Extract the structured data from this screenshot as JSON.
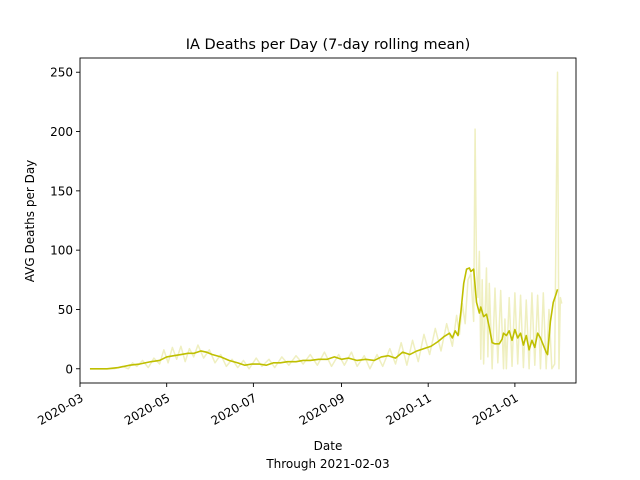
{
  "chart_data": {
    "type": "line",
    "title": "IA Deaths per Day (7-day rolling mean)",
    "xlabel": "Date",
    "xlabel_sub": "Through 2021-02-03",
    "ylabel": "AVG Deaths per Day",
    "xlim": [
      "2020-03-01",
      "2021-02-13"
    ],
    "ylim": [
      -12,
      262
    ],
    "yticks": [
      0,
      50,
      100,
      150,
      200,
      250
    ],
    "xticks": [
      "2020-03",
      "2020-05",
      "2020-07",
      "2020-09",
      "2020-11",
      "2021-01"
    ],
    "xtick_dates": [
      "2020-03-01",
      "2020-05-01",
      "2020-07-01",
      "2020-09-01",
      "2020-11-01",
      "2021-01-01"
    ],
    "grid": false,
    "series": [
      {
        "role": "daily",
        "color": "#efefc0",
        "points": [
          [
            "2020-03-08",
            0
          ],
          [
            "2020-03-25",
            0
          ],
          [
            "2020-03-31",
            2
          ],
          [
            "2020-04-04",
            0
          ],
          [
            "2020-04-07",
            5
          ],
          [
            "2020-04-10",
            2
          ],
          [
            "2020-04-14",
            7
          ],
          [
            "2020-04-18",
            1
          ],
          [
            "2020-04-22",
            9
          ],
          [
            "2020-04-26",
            4
          ],
          [
            "2020-04-29",
            16
          ],
          [
            "2020-05-02",
            5
          ],
          [
            "2020-05-05",
            18
          ],
          [
            "2020-05-08",
            8
          ],
          [
            "2020-05-11",
            19
          ],
          [
            "2020-05-14",
            6
          ],
          [
            "2020-05-17",
            17
          ],
          [
            "2020-05-20",
            10
          ],
          [
            "2020-05-23",
            20
          ],
          [
            "2020-05-27",
            9
          ],
          [
            "2020-05-31",
            16
          ],
          [
            "2020-06-04",
            5
          ],
          [
            "2020-06-08",
            12
          ],
          [
            "2020-06-12",
            2
          ],
          [
            "2020-06-16",
            8
          ],
          [
            "2020-06-20",
            1
          ],
          [
            "2020-06-24",
            7
          ],
          [
            "2020-06-28",
            0
          ],
          [
            "2020-07-03",
            9
          ],
          [
            "2020-07-07",
            2
          ],
          [
            "2020-07-12",
            8
          ],
          [
            "2020-07-16",
            1
          ],
          [
            "2020-07-21",
            10
          ],
          [
            "2020-07-26",
            3
          ],
          [
            "2020-07-31",
            11
          ],
          [
            "2020-08-05",
            4
          ],
          [
            "2020-08-10",
            12
          ],
          [
            "2020-08-15",
            3
          ],
          [
            "2020-08-20",
            14
          ],
          [
            "2020-08-25",
            2
          ],
          [
            "2020-08-30",
            12
          ],
          [
            "2020-09-03",
            3
          ],
          [
            "2020-09-08",
            14
          ],
          [
            "2020-09-12",
            2
          ],
          [
            "2020-09-17",
            11
          ],
          [
            "2020-09-21",
            0
          ],
          [
            "2020-09-26",
            12
          ],
          [
            "2020-09-30",
            2
          ],
          [
            "2020-10-05",
            17
          ],
          [
            "2020-10-09",
            4
          ],
          [
            "2020-10-13",
            22
          ],
          [
            "2020-10-17",
            3
          ],
          [
            "2020-10-21",
            24
          ],
          [
            "2020-10-25",
            6
          ],
          [
            "2020-10-29",
            29
          ],
          [
            "2020-11-02",
            12
          ],
          [
            "2020-11-06",
            34
          ],
          [
            "2020-11-10",
            15
          ],
          [
            "2020-11-14",
            38
          ],
          [
            "2020-11-18",
            19
          ],
          [
            "2020-11-21",
            45
          ],
          [
            "2020-11-23",
            29
          ],
          [
            "2020-11-25",
            55
          ],
          [
            "2020-11-27",
            38
          ],
          [
            "2020-11-29",
            75
          ],
          [
            "2020-12-01",
            80
          ],
          [
            "2020-12-03",
            40
          ],
          [
            "2020-12-04",
            202
          ],
          [
            "2020-12-05",
            85
          ],
          [
            "2020-12-06",
            60
          ],
          [
            "2020-12-07",
            99
          ],
          [
            "2020-12-08",
            8
          ],
          [
            "2020-12-09",
            75
          ],
          [
            "2020-12-10",
            4
          ],
          [
            "2020-12-12",
            85
          ],
          [
            "2020-12-13",
            10
          ],
          [
            "2020-12-14",
            72
          ],
          [
            "2020-12-16",
            0
          ],
          [
            "2020-12-18",
            68
          ],
          [
            "2020-12-20",
            5
          ],
          [
            "2020-12-22",
            66
          ],
          [
            "2020-12-24",
            0
          ],
          [
            "2020-12-25",
            42
          ],
          [
            "2020-12-26",
            0
          ],
          [
            "2020-12-28",
            60
          ],
          [
            "2020-12-30",
            2
          ],
          [
            "2021-01-01",
            64
          ],
          [
            "2021-01-03",
            4
          ],
          [
            "2021-01-05",
            62
          ],
          [
            "2021-01-07",
            1
          ],
          [
            "2021-01-09",
            58
          ],
          [
            "2021-01-11",
            0
          ],
          [
            "2021-01-13",
            64
          ],
          [
            "2021-01-15",
            3
          ],
          [
            "2021-01-17",
            62
          ],
          [
            "2021-01-19",
            0
          ],
          [
            "2021-01-21",
            64
          ],
          [
            "2021-01-23",
            0
          ],
          [
            "2021-01-25",
            50
          ],
          [
            "2021-01-27",
            0
          ],
          [
            "2021-01-29",
            4
          ],
          [
            "2021-01-31",
            250
          ],
          [
            "2021-02-01",
            0
          ],
          [
            "2021-02-02",
            60
          ],
          [
            "2021-02-03",
            55
          ]
        ]
      },
      {
        "role": "rolling-mean",
        "color": "#bfbf00",
        "points": [
          [
            "2020-03-08",
            0
          ],
          [
            "2020-03-20",
            0
          ],
          [
            "2020-03-28",
            1
          ],
          [
            "2020-04-05",
            3
          ],
          [
            "2020-04-12",
            4
          ],
          [
            "2020-04-20",
            6
          ],
          [
            "2020-04-26",
            7
          ],
          [
            "2020-05-01",
            10
          ],
          [
            "2020-05-06",
            11
          ],
          [
            "2020-05-11",
            12
          ],
          [
            "2020-05-16",
            13
          ],
          [
            "2020-05-20",
            13
          ],
          [
            "2020-05-25",
            15
          ],
          [
            "2020-05-29",
            14
          ],
          [
            "2020-06-02",
            12
          ],
          [
            "2020-06-08",
            10
          ],
          [
            "2020-06-14",
            7
          ],
          [
            "2020-06-20",
            5
          ],
          [
            "2020-06-25",
            3
          ],
          [
            "2020-06-30",
            4
          ],
          [
            "2020-07-05",
            4
          ],
          [
            "2020-07-10",
            3
          ],
          [
            "2020-07-15",
            5
          ],
          [
            "2020-07-20",
            5
          ],
          [
            "2020-07-25",
            6
          ],
          [
            "2020-07-31",
            6
          ],
          [
            "2020-08-05",
            7
          ],
          [
            "2020-08-10",
            7
          ],
          [
            "2020-08-16",
            8
          ],
          [
            "2020-08-22",
            8
          ],
          [
            "2020-08-27",
            10
          ],
          [
            "2020-09-01",
            8
          ],
          [
            "2020-09-06",
            9
          ],
          [
            "2020-09-12",
            7
          ],
          [
            "2020-09-18",
            8
          ],
          [
            "2020-09-24",
            7
          ],
          [
            "2020-09-29",
            10
          ],
          [
            "2020-10-04",
            11
          ],
          [
            "2020-10-09",
            9
          ],
          [
            "2020-10-14",
            14
          ],
          [
            "2020-10-19",
            12
          ],
          [
            "2020-10-24",
            15
          ],
          [
            "2020-10-29",
            17
          ],
          [
            "2020-11-03",
            19
          ],
          [
            "2020-11-08",
            23
          ],
          [
            "2020-11-12",
            27
          ],
          [
            "2020-11-16",
            30
          ],
          [
            "2020-11-18",
            26
          ],
          [
            "2020-11-20",
            32
          ],
          [
            "2020-11-22",
            28
          ],
          [
            "2020-11-24",
            48
          ],
          [
            "2020-11-26",
            72
          ],
          [
            "2020-11-28",
            84
          ],
          [
            "2020-11-30",
            85
          ],
          [
            "2020-12-01",
            82
          ],
          [
            "2020-12-03",
            84
          ],
          [
            "2020-12-05",
            56
          ],
          [
            "2020-12-07",
            47
          ],
          [
            "2020-12-08",
            52
          ],
          [
            "2020-12-10",
            44
          ],
          [
            "2020-12-12",
            46
          ],
          [
            "2020-12-14",
            35
          ],
          [
            "2020-12-16",
            22
          ],
          [
            "2020-12-18",
            21
          ],
          [
            "2020-12-21",
            21
          ],
          [
            "2020-12-23",
            25
          ],
          [
            "2020-12-24",
            30
          ],
          [
            "2020-12-26",
            28
          ],
          [
            "2020-12-28",
            32
          ],
          [
            "2020-12-30",
            24
          ],
          [
            "2021-01-01",
            33
          ],
          [
            "2021-01-03",
            26
          ],
          [
            "2021-01-05",
            30
          ],
          [
            "2021-01-07",
            20
          ],
          [
            "2021-01-09",
            28
          ],
          [
            "2021-01-11",
            16
          ],
          [
            "2021-01-13",
            24
          ],
          [
            "2021-01-15",
            18
          ],
          [
            "2021-01-17",
            30
          ],
          [
            "2021-01-19",
            26
          ],
          [
            "2021-01-21",
            20
          ],
          [
            "2021-01-23",
            14
          ],
          [
            "2021-01-24",
            12
          ],
          [
            "2021-01-26",
            40
          ],
          [
            "2021-01-28",
            56
          ],
          [
            "2021-01-30",
            63
          ],
          [
            "2021-01-31",
            67
          ]
        ]
      }
    ]
  }
}
